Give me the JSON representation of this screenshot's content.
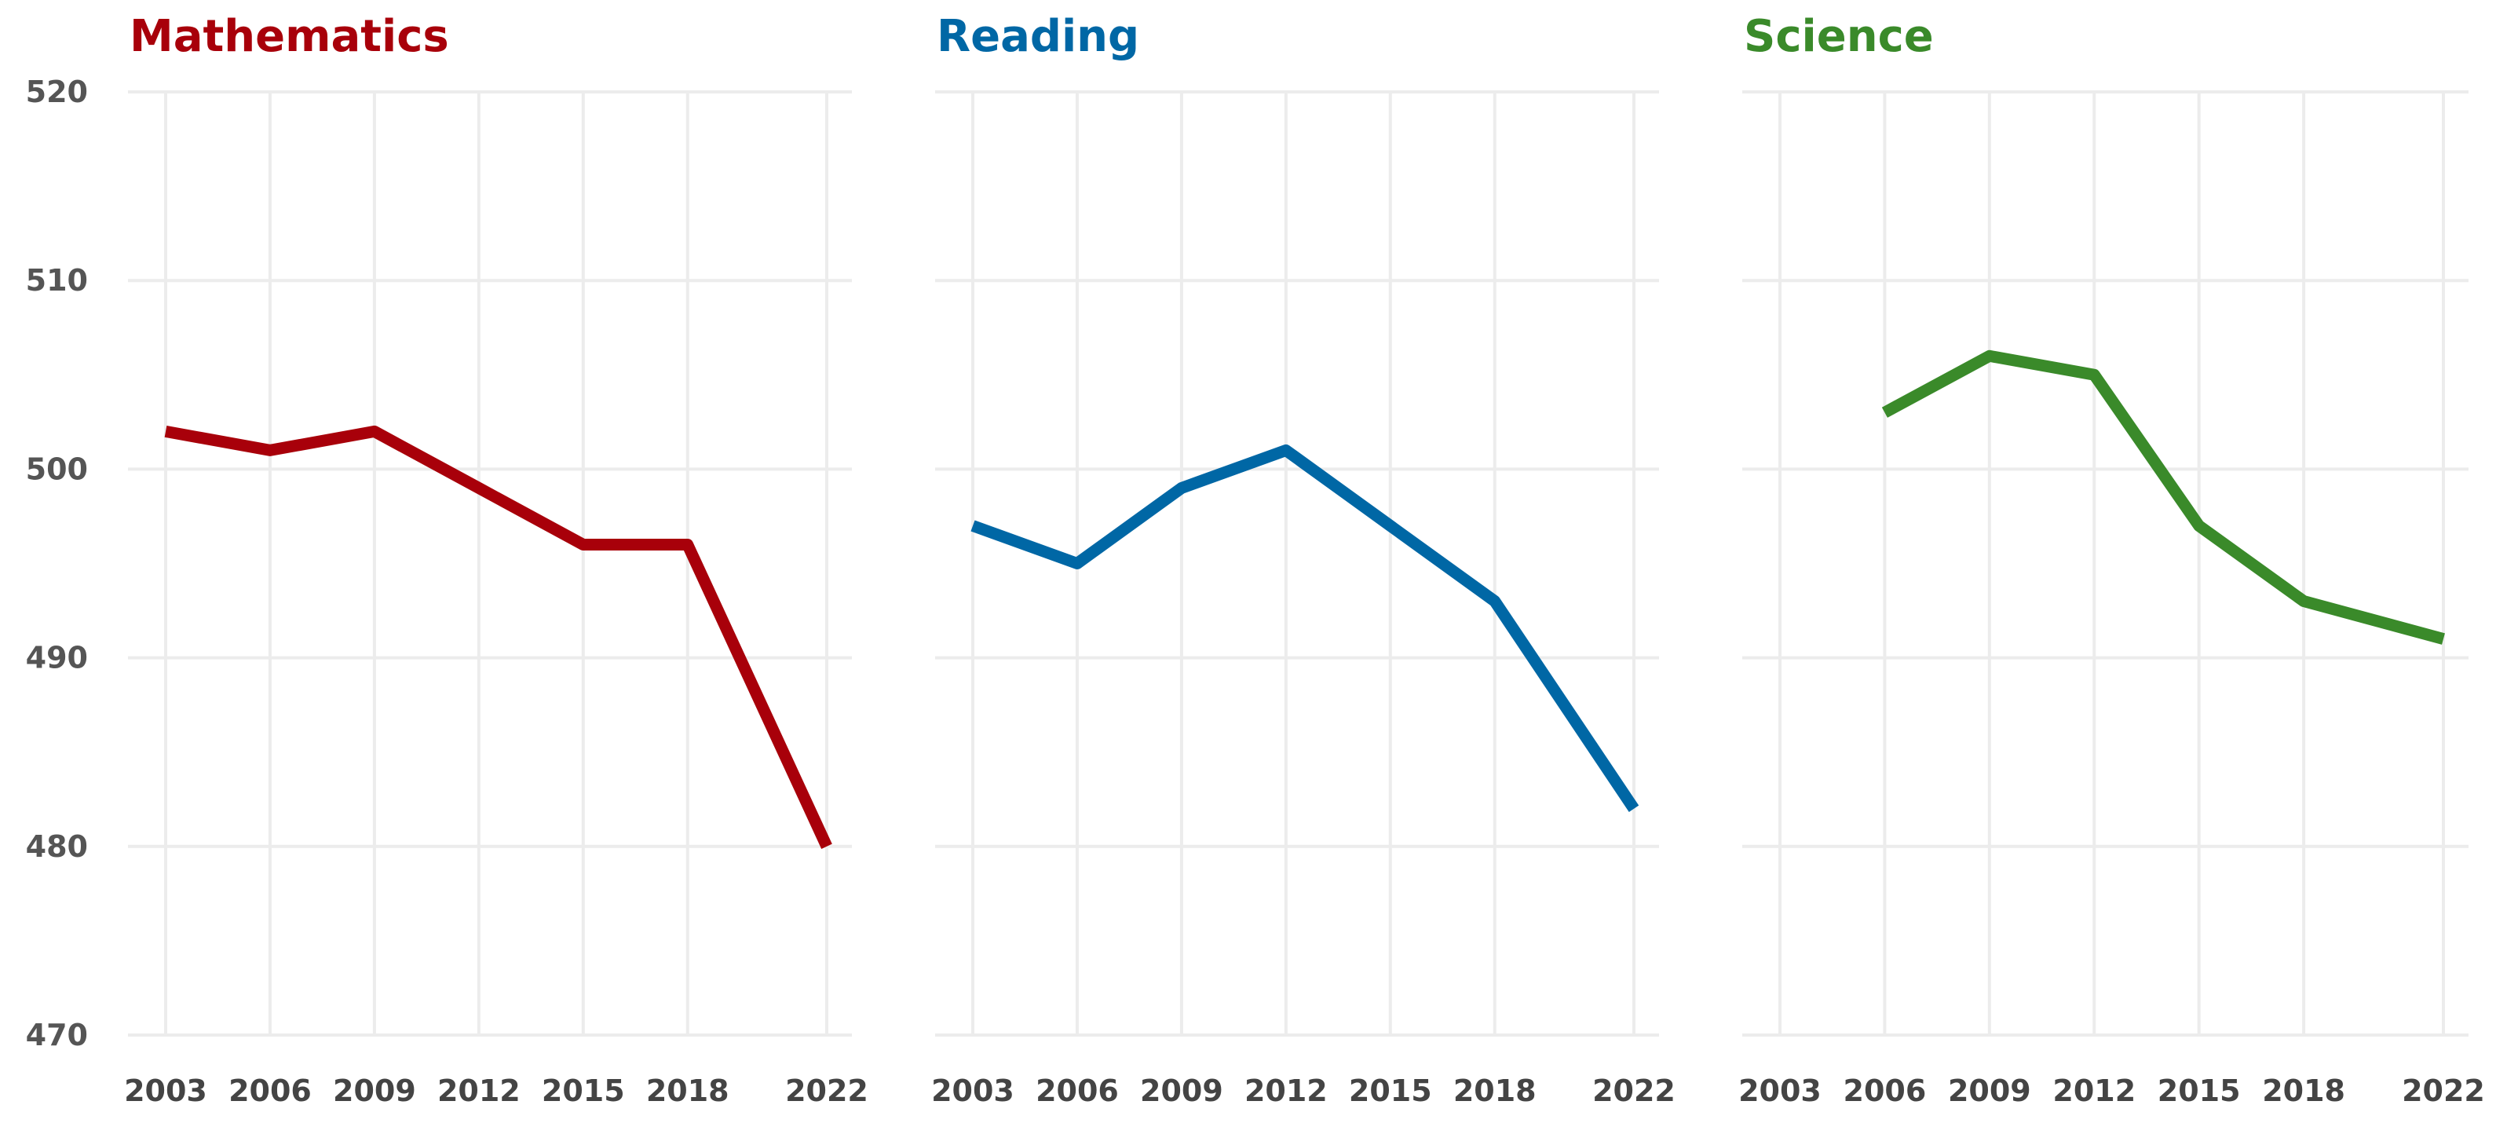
{
  "chart_data": [
    {
      "type": "line",
      "title": "Mathematics",
      "color": "#a8000a",
      "x": [
        2003,
        2006,
        2009,
        2012,
        2015,
        2018,
        2022
      ],
      "xticks": [
        2003,
        2006,
        2009,
        2012,
        2015,
        2018,
        2022
      ],
      "yticks": [
        470,
        480,
        490,
        500,
        510,
        520
      ],
      "ylim": [
        470,
        520
      ],
      "grid": true,
      "series": [
        {
          "values": [
            502,
            501,
            502,
            499,
            496,
            496,
            480
          ]
        }
      ]
    },
    {
      "type": "line",
      "title": "Reading",
      "color": "#0067a5",
      "x": [
        2003,
        2006,
        2009,
        2012,
        2015,
        2018,
        2022
      ],
      "xticks": [
        2003,
        2006,
        2009,
        2012,
        2015,
        2018,
        2022
      ],
      "ylim": [
        470,
        520
      ],
      "grid": true,
      "series": [
        {
          "values": [
            497,
            495,
            499,
            501,
            497,
            493,
            482
          ]
        }
      ]
    },
    {
      "type": "line",
      "title": "Science",
      "color": "#3a8a2a",
      "x": [
        2006,
        2009,
        2012,
        2015,
        2018,
        2022
      ],
      "xticks": [
        2003,
        2006,
        2009,
        2012,
        2015,
        2018,
        2022
      ],
      "ylim": [
        470,
        520
      ],
      "grid": true,
      "series": [
        {
          "values": [
            503,
            506,
            505,
            497,
            493,
            491
          ]
        }
      ]
    }
  ]
}
